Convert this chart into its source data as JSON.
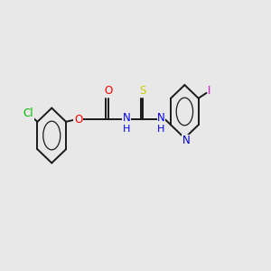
{
  "background_color": "#e8e8e8",
  "bond_color": "#1a1a1a",
  "atom_colors": {
    "Cl": "#00bb00",
    "O": "#ff0000",
    "N": "#0000ff",
    "S": "#cccc00",
    "I": "#dd00dd",
    "N_pyr": "#0000cc"
  },
  "font_size": 8.5,
  "fig_width": 3.0,
  "fig_height": 3.0,
  "xlim": [
    0,
    10
  ],
  "ylim": [
    2,
    8
  ]
}
